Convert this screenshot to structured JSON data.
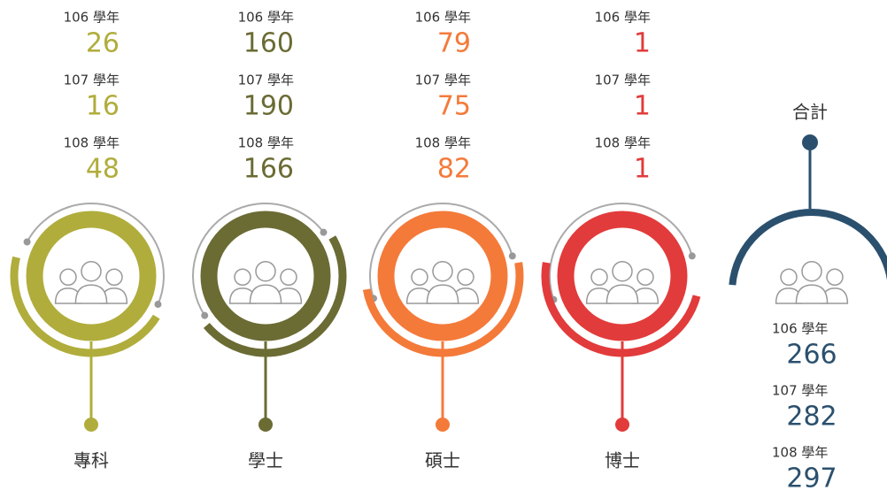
{
  "groups": [
    {
      "name": "專科",
      "color": "#b0ad3c",
      "entries": [
        {
          "year": "106 學年",
          "value": 26
        },
        {
          "year": "107 學年",
          "value": 16
        },
        {
          "year": "108 學年",
          "value": 48
        }
      ]
    },
    {
      "name": "學士",
      "color": "#6b6b34",
      "entries": [
        {
          "year": "106 學年",
          "value": 160
        },
        {
          "year": "107 學年",
          "value": 190
        },
        {
          "year": "108 學年",
          "value": 166
        }
      ]
    },
    {
      "name": "碩士",
      "color": "#f47a3a",
      "entries": [
        {
          "year": "106 學年",
          "value": 79
        },
        {
          "year": "107 學年",
          "value": 75
        },
        {
          "year": "108 學年",
          "value": 82
        }
      ]
    },
    {
      "name": "博士",
      "color": "#e23b3b",
      "entries": [
        {
          "year": "106 學年",
          "value": 1
        },
        {
          "year": "107 學年",
          "value": 1
        },
        {
          "year": "108 學年",
          "value": 1
        }
      ]
    }
  ],
  "total": {
    "name": "合計",
    "color": "#2b506e",
    "entries": [
      {
        "year": "106 學年",
        "value": 266
      },
      {
        "year": "107 學年",
        "value": 282
      },
      {
        "year": "108 學年",
        "value": 297
      }
    ]
  }
}
